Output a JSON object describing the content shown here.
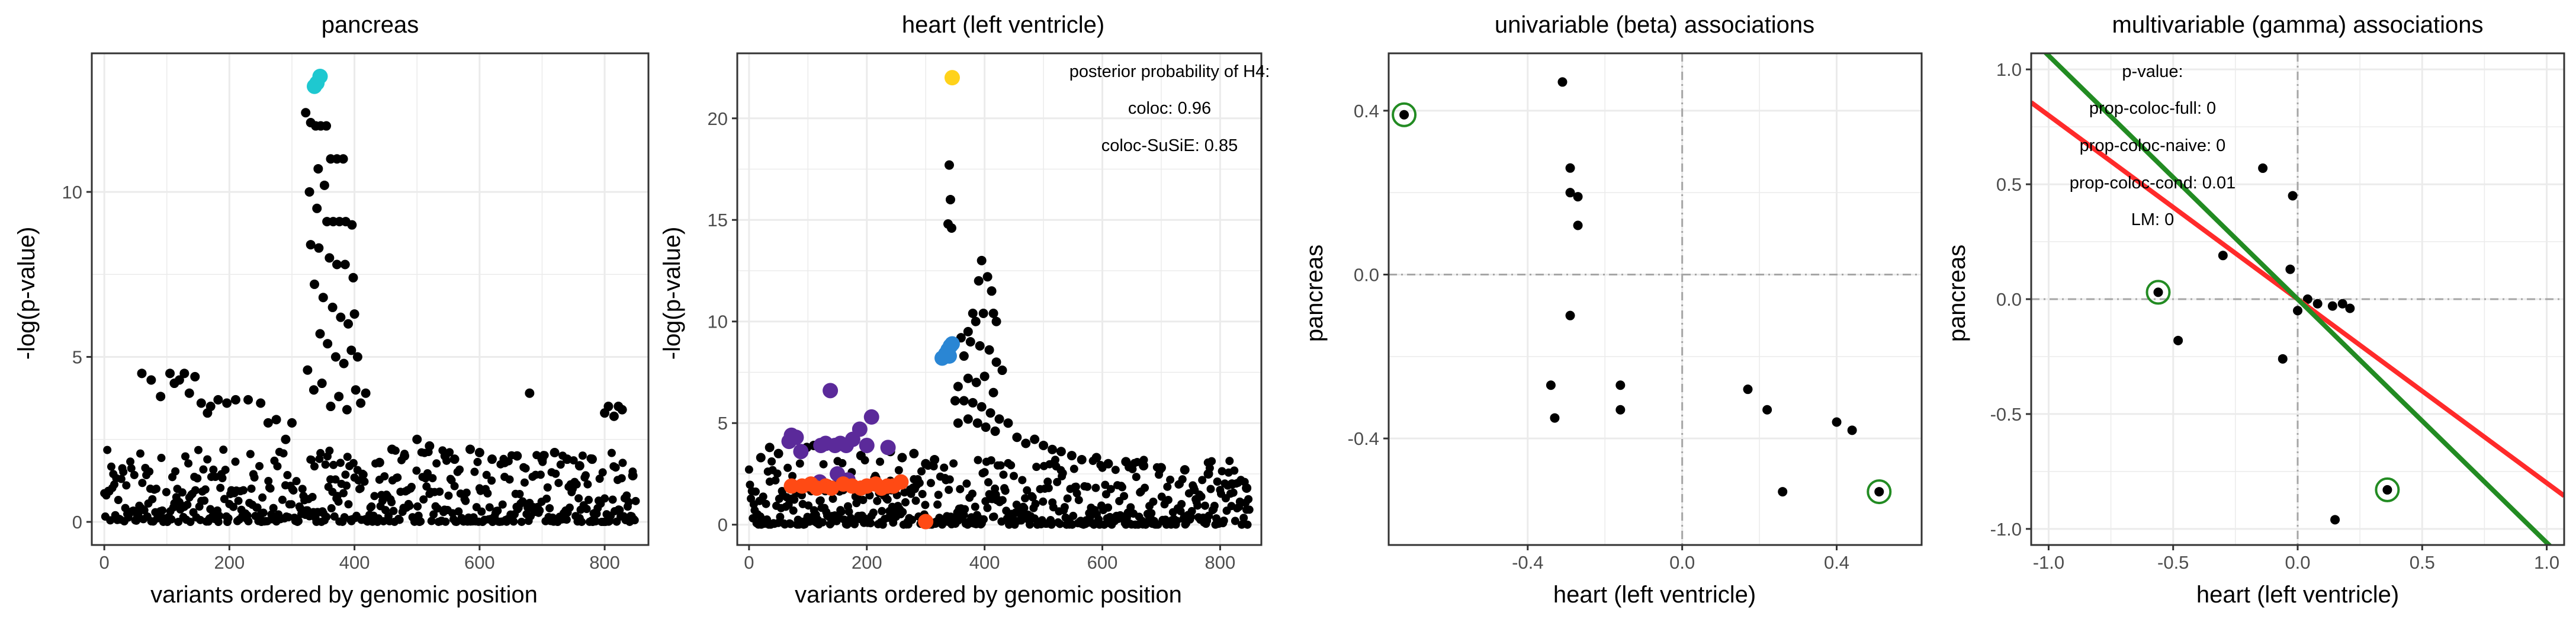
{
  "colors": {
    "point": "#000000",
    "grid": "#ebebeb",
    "panel_border": "#333333",
    "pancreas_highlight": "#1ec8d0",
    "lead_variant": "#ffd21a",
    "credible_set_blue": "#2a86d4",
    "credible_set_purple": "#5b2a9a",
    "credible_set_orange": "#ff4a14",
    "ivw_line": "#ff2a2a",
    "egger_line": "#228b22",
    "circle": "#228b22",
    "zero_line": "#a6a6a6"
  },
  "chart_data": [
    {
      "type": "scatter",
      "title": "pancreas",
      "xlabel": "variants ordered by genomic position",
      "ylabel": "-log(p-value)",
      "xlim": [
        -20,
        870
      ],
      "ylim": [
        -0.7,
        14.2
      ],
      "xticks": [
        0,
        200,
        400,
        600,
        800
      ],
      "xtick_labels": [
        "0",
        "200",
        "400",
        "600",
        "800"
      ],
      "yticks": [
        0,
        5,
        10
      ],
      "ytick_labels": [
        "0",
        "5",
        "10"
      ],
      "grid": true,
      "highlight": {
        "color": "cyan",
        "points": [
          [
            336,
            13.2
          ],
          [
            340,
            13.3
          ],
          [
            345,
            13.5
          ]
        ]
      },
      "peaks": [
        [
          322,
          12.4
        ],
        [
          330,
          12.1
        ],
        [
          338,
          12.0
        ],
        [
          346,
          12.0
        ],
        [
          355,
          12.0
        ],
        [
          342,
          10.7
        ],
        [
          352,
          10.2
        ],
        [
          362,
          11.0
        ],
        [
          372,
          11.0
        ],
        [
          382,
          11.0
        ],
        [
          328,
          10.0
        ],
        [
          340,
          9.5
        ],
        [
          356,
          9.1
        ],
        [
          366,
          9.1
        ],
        [
          376,
          9.1
        ],
        [
          386,
          9.1
        ],
        [
          396,
          9.0
        ],
        [
          330,
          8.4
        ],
        [
          343,
          8.3
        ],
        [
          360,
          8.0
        ],
        [
          372,
          7.8
        ],
        [
          385,
          7.8
        ],
        [
          398,
          7.4
        ],
        [
          336,
          7.2
        ],
        [
          350,
          6.8
        ],
        [
          365,
          6.5
        ],
        [
          378,
          6.2
        ],
        [
          390,
          6.0
        ],
        [
          400,
          6.3
        ],
        [
          345,
          5.7
        ],
        [
          357,
          5.4
        ],
        [
          370,
          5.0
        ],
        [
          383,
          4.8
        ],
        [
          395,
          5.2
        ],
        [
          405,
          5.0
        ],
        [
          325,
          4.6
        ],
        [
          335,
          4.0
        ],
        [
          348,
          4.2
        ],
        [
          362,
          3.5
        ],
        [
          375,
          3.8
        ],
        [
          388,
          3.4
        ],
        [
          402,
          4.0
        ],
        [
          410,
          3.6
        ],
        [
          418,
          3.9
        ],
        [
          680,
          3.9
        ],
        [
          800,
          3.3
        ],
        [
          806,
          3.5
        ],
        [
          815,
          3.2
        ],
        [
          822,
          3.5
        ],
        [
          828,
          3.4
        ],
        [
          60,
          4.5
        ],
        [
          75,
          4.3
        ],
        [
          90,
          3.8
        ],
        [
          105,
          4.5
        ],
        [
          112,
          4.2
        ],
        [
          120,
          4.3
        ],
        [
          128,
          4.5
        ],
        [
          136,
          3.9
        ],
        [
          145,
          4.4
        ],
        [
          155,
          3.6
        ],
        [
          165,
          3.3
        ],
        [
          170,
          3.5
        ],
        [
          182,
          3.7
        ],
        [
          196,
          3.6
        ],
        [
          210,
          3.7
        ],
        [
          230,
          3.7
        ],
        [
          250,
          3.6
        ],
        [
          262,
          3.0
        ],
        [
          275,
          3.1
        ],
        [
          290,
          2.5
        ],
        [
          300,
          3.0
        ],
        [
          440,
          1.8
        ],
        [
          460,
          2.2
        ],
        [
          480,
          2.0
        ],
        [
          500,
          2.5
        ],
        [
          520,
          2.3
        ],
        [
          545,
          2.0
        ],
        [
          560,
          1.9
        ],
        [
          585,
          2.2
        ],
        [
          600,
          2.1
        ],
        [
          620,
          1.9
        ],
        [
          640,
          1.8
        ],
        [
          660,
          2.0
        ],
        [
          700,
          1.9
        ],
        [
          720,
          2.1
        ],
        [
          740,
          1.9
        ],
        [
          760,
          1.7
        ],
        [
          780,
          1.9
        ],
        [
          845,
          1.4
        ]
      ]
    },
    {
      "type": "scatter",
      "title": "heart (left ventricle)",
      "xlabel": "variants ordered by genomic position",
      "ylabel": "-log(p-value)",
      "xlim": [
        -20,
        870
      ],
      "ylim": [
        -1.0,
        23.2
      ],
      "xticks": [
        0,
        200,
        400,
        600,
        800
      ],
      "xtick_labels": [
        "0",
        "200",
        "400",
        "600",
        "800"
      ],
      "yticks": [
        0,
        5,
        10,
        15,
        20
      ],
      "ytick_labels": [
        "0",
        "5",
        "10",
        "15",
        "20"
      ],
      "grid": true,
      "annotation": [
        "posterior probability of H4:",
        "coloc: 0.96",
        "coloc-SuSiE: 0.85"
      ],
      "lead_variant": [
        [
          345,
          22.0
        ]
      ],
      "credible_set_blue": [
        [
          328,
          8.2
        ],
        [
          334,
          8.4
        ],
        [
          338,
          8.6
        ],
        [
          342,
          8.8
        ],
        [
          345,
          8.9
        ],
        [
          340,
          8.3
        ]
      ],
      "credible_set_purple": [
        [
          68,
          4.1
        ],
        [
          72,
          4.4
        ],
        [
          80,
          4.3
        ],
        [
          88,
          3.6
        ],
        [
          122,
          3.9
        ],
        [
          130,
          4.0
        ],
        [
          138,
          6.6
        ],
        [
          146,
          3.9
        ],
        [
          155,
          4.0
        ],
        [
          165,
          3.9
        ],
        [
          176,
          4.2
        ],
        [
          188,
          4.7
        ],
        [
          200,
          3.9
        ],
        [
          208,
          5.3
        ],
        [
          236,
          3.8
        ],
        [
          120,
          2.1
        ],
        [
          150,
          2.5
        ],
        [
          168,
          2.2
        ]
      ],
      "credible_set_orange": [
        [
          72,
          1.9
        ],
        [
          90,
          1.9
        ],
        [
          105,
          2.0
        ],
        [
          115,
          1.8
        ],
        [
          130,
          1.9
        ],
        [
          140,
          1.8
        ],
        [
          160,
          2.0
        ],
        [
          175,
          1.9
        ],
        [
          190,
          1.8
        ],
        [
          200,
          1.9
        ],
        [
          215,
          2.0
        ],
        [
          225,
          1.8
        ],
        [
          235,
          1.9
        ],
        [
          245,
          1.9
        ],
        [
          258,
          2.1
        ],
        [
          300,
          0.15
        ]
      ],
      "peaks": [
        [
          340,
          17.7
        ],
        [
          342,
          16.0
        ],
        [
          338,
          14.8
        ],
        [
          344,
          14.6
        ],
        [
          395,
          13.0
        ],
        [
          405,
          12.2
        ],
        [
          390,
          12.0
        ],
        [
          412,
          11.5
        ],
        [
          380,
          10.4
        ],
        [
          398,
          10.4
        ],
        [
          415,
          10.4
        ],
        [
          385,
          10.0
        ],
        [
          420,
          10.0
        ],
        [
          372,
          9.5
        ],
        [
          360,
          9.2
        ],
        [
          376,
          9.0
        ],
        [
          392,
          8.8
        ],
        [
          408,
          8.6
        ],
        [
          365,
          8.3
        ],
        [
          420,
          8.0
        ],
        [
          430,
          7.6
        ],
        [
          372,
          7.2
        ],
        [
          386,
          7.0
        ],
        [
          400,
          7.3
        ],
        [
          355,
          6.8
        ],
        [
          415,
          6.5
        ],
        [
          350,
          6.1
        ],
        [
          365,
          6.1
        ],
        [
          380,
          6.0
        ],
        [
          395,
          5.8
        ],
        [
          410,
          5.5
        ],
        [
          425,
          5.2
        ],
        [
          440,
          5.0
        ],
        [
          355,
          5.0
        ],
        [
          372,
          5.2
        ],
        [
          388,
          5.0
        ],
        [
          402,
          4.8
        ],
        [
          418,
          4.6
        ],
        [
          455,
          4.3
        ],
        [
          470,
          4.0
        ],
        [
          485,
          4.2
        ],
        [
          500,
          3.9
        ],
        [
          515,
          3.7
        ],
        [
          530,
          3.6
        ],
        [
          548,
          3.4
        ],
        [
          565,
          3.2
        ],
        [
          590,
          3.3
        ],
        [
          610,
          3.0
        ],
        [
          640,
          3.1
        ],
        [
          670,
          2.9
        ],
        [
          700,
          2.8
        ],
        [
          740,
          2.7
        ],
        [
          780,
          2.5
        ],
        [
          820,
          2.0
        ],
        [
          845,
          1.8
        ],
        [
          20,
          3.3
        ],
        [
          35,
          3.8
        ],
        [
          50,
          3.5
        ],
        [
          98,
          3.8
        ],
        [
          110,
          3.9
        ],
        [
          190,
          3.4
        ],
        [
          240,
          3.6
        ],
        [
          260,
          3.3
        ],
        [
          280,
          3.5
        ],
        [
          300,
          3.0
        ],
        [
          315,
          3.2
        ]
      ]
    },
    {
      "type": "scatter",
      "title": "univariable (beta) associations",
      "xlabel": "heart (left ventricle)",
      "ylabel": "pancreas",
      "xlim": [
        -0.76,
        0.62
      ],
      "ylim": [
        -0.66,
        0.54
      ],
      "xticks": [
        -0.4,
        0.0,
        0.4
      ],
      "xtick_labels": [
        "-0.4",
        "0.0",
        "0.4"
      ],
      "yticks": [
        -0.4,
        0.0,
        0.4
      ],
      "ytick_labels": [
        "-0.4",
        "0.0",
        "0.4"
      ],
      "grid": true,
      "zero_lines": true,
      "points": [
        [
          -0.72,
          0.39
        ],
        [
          -0.31,
          0.47
        ],
        [
          -0.29,
          0.26
        ],
        [
          -0.29,
          0.2
        ],
        [
          -0.27,
          0.19
        ],
        [
          -0.27,
          0.12
        ],
        [
          -0.29,
          -0.1
        ],
        [
          -0.34,
          -0.27
        ],
        [
          -0.33,
          -0.35
        ],
        [
          -0.16,
          -0.27
        ],
        [
          -0.16,
          -0.33
        ],
        [
          0.17,
          -0.28
        ],
        [
          0.22,
          -0.33
        ],
        [
          0.26,
          -0.53
        ],
        [
          0.4,
          -0.36
        ],
        [
          0.44,
          -0.38
        ],
        [
          0.51,
          -0.53
        ]
      ],
      "circled": [
        [
          -0.72,
          0.39
        ],
        [
          0.51,
          -0.53
        ]
      ]
    },
    {
      "type": "scatter",
      "title": "multivariable (gamma) associations",
      "xlabel": "heart (left ventricle)",
      "ylabel": "pancreas",
      "xlim": [
        -1.07,
        1.07
      ],
      "ylim": [
        -1.07,
        1.07
      ],
      "xticks": [
        -1.0,
        -0.5,
        0.0,
        0.5,
        1.0
      ],
      "xtick_labels": [
        "-1.0",
        "-0.5",
        "0.0",
        "0.5",
        "1.0"
      ],
      "yticks": [
        -1.0,
        -0.5,
        0.0,
        0.5,
        1.0
      ],
      "ytick_labels": [
        "-1.0",
        "-0.5",
        "0.0",
        "0.5",
        "1.0"
      ],
      "grid": true,
      "zero_lines": true,
      "annotation": [
        "p-value:",
        "prop-coloc-full: 0",
        "prop-coloc-naive: 0",
        "prop-coloc-cond: 0.01",
        "LM: 0"
      ],
      "points": [
        [
          -0.56,
          0.03
        ],
        [
          -0.48,
          -0.18
        ],
        [
          -0.3,
          0.19
        ],
        [
          -0.14,
          0.57
        ],
        [
          -0.02,
          0.45
        ],
        [
          -0.06,
          -0.26
        ],
        [
          -0.03,
          0.13
        ],
        [
          0.0,
          -0.05
        ],
        [
          0.04,
          0.0
        ],
        [
          0.08,
          -0.02
        ],
        [
          0.14,
          -0.03
        ],
        [
          0.18,
          -0.02
        ],
        [
          0.21,
          -0.04
        ],
        [
          0.36,
          -0.83
        ],
        [
          0.15,
          -0.96
        ]
      ],
      "circled": [
        [
          -0.56,
          0.03
        ],
        [
          0.36,
          -0.83
        ]
      ],
      "lines": [
        {
          "color": "red",
          "slope": -0.8,
          "intercept": 0.0
        },
        {
          "color": "green",
          "slope": -1.06,
          "intercept": 0.0
        }
      ]
    }
  ]
}
